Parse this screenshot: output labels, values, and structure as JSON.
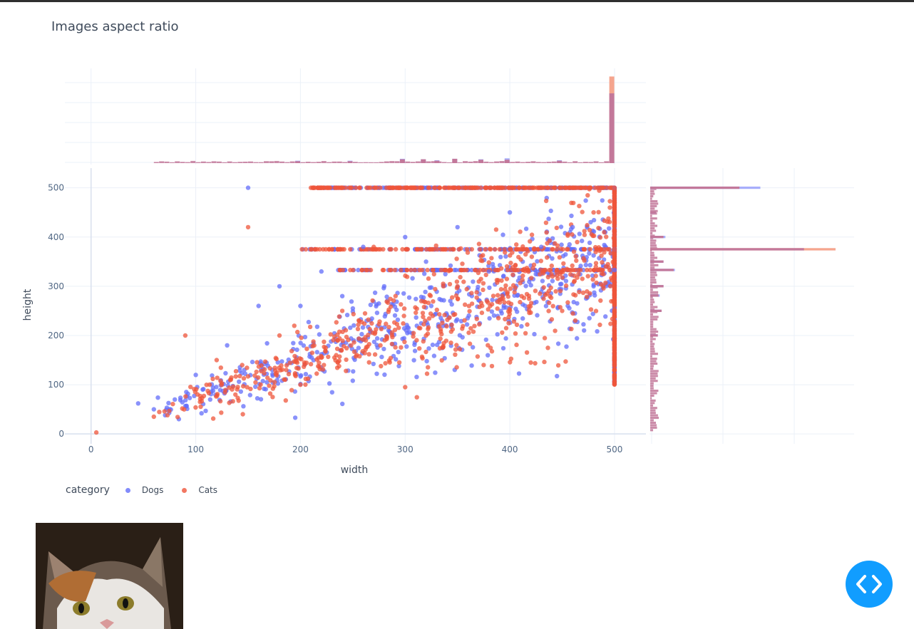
{
  "page": {
    "title": "Images aspect ratio"
  },
  "legend": {
    "title": "category",
    "items": [
      {
        "label": "Dogs",
        "color": "#636efa"
      },
      {
        "label": "Cats",
        "color": "#ef553b"
      }
    ]
  },
  "sample_image": {
    "icon": "cat-photo"
  },
  "code_toggle": {
    "icon": "code-brackets-icon",
    "color": "#119dff"
  },
  "chart_data": {
    "type": "scatter",
    "title": "Images aspect ratio",
    "xlabel": "width",
    "ylabel": "height",
    "xlim": [
      -25,
      530
    ],
    "ylim": [
      -20,
      540
    ],
    "x_ticks": [
      "0",
      "100",
      "200",
      "300",
      "400",
      "500"
    ],
    "y_ticks": [
      "0",
      "100",
      "200",
      "300",
      "400",
      "500"
    ],
    "grid": true,
    "legend_placement": "bottom-left",
    "marginal_x": "histogram",
    "marginal_y": "histogram",
    "series": [
      {
        "name": "Dogs",
        "color": "#636efa",
        "approx_points": [
          [
            45,
            62
          ],
          [
            60,
            50
          ],
          [
            80,
            70
          ],
          [
            100,
            120
          ],
          [
            130,
            180
          ],
          [
            150,
            500
          ],
          [
            160,
            260
          ],
          [
            180,
            300
          ],
          [
            200,
            260
          ],
          [
            220,
            330
          ],
          [
            240,
            280
          ],
          [
            260,
            380
          ],
          [
            280,
            300
          ],
          [
            300,
            400
          ],
          [
            320,
            350
          ],
          [
            350,
            420
          ],
          [
            380,
            330
          ],
          [
            400,
            450
          ],
          [
            430,
            380
          ],
          [
            460,
            420
          ],
          [
            480,
            300
          ],
          [
            500,
            375
          ],
          [
            500,
            333
          ],
          [
            500,
            500
          ],
          [
            195,
            33
          ]
        ]
      },
      {
        "name": "Cats",
        "color": "#ef553b",
        "approx_points": [
          [
            5,
            3
          ],
          [
            60,
            35
          ],
          [
            90,
            200
          ],
          [
            120,
            150
          ],
          [
            145,
            40
          ],
          [
            150,
            420
          ],
          [
            180,
            200
          ],
          [
            200,
            100
          ],
          [
            210,
            500
          ],
          [
            240,
            250
          ],
          [
            270,
            380
          ],
          [
            300,
            95
          ],
          [
            320,
            200
          ],
          [
            350,
            300
          ],
          [
            375,
            140
          ],
          [
            400,
            375
          ],
          [
            420,
            145
          ],
          [
            450,
            250
          ],
          [
            480,
            450
          ],
          [
            500,
            500
          ],
          [
            500,
            375
          ],
          [
            500,
            150
          ],
          [
            500,
            200
          ],
          [
            430,
            500
          ],
          [
            300,
            500
          ]
        ]
      }
    ],
    "marginal_x_bins": [
      {
        "x": 500,
        "dogs": 14.5,
        "cats": 18.0
      },
      {
        "x": 400,
        "dogs": 1.0,
        "cats": 0.7
      },
      {
        "x": 350,
        "dogs": 0.9,
        "cats": 0.9
      },
      {
        "x": 320,
        "dogs": 0.8,
        "cats": 0.8
      },
      {
        "x": 300,
        "dogs": 0.9,
        "cats": 0.8
      },
      {
        "x": 375,
        "dogs": 0.8,
        "cats": 0.7
      },
      {
        "x": 450,
        "dogs": 0.6,
        "cats": 0.5
      },
      {
        "x": 200,
        "dogs": 0.5,
        "cats": 0.4
      },
      {
        "x": 250,
        "dogs": 0.5,
        "cats": 0.4
      },
      {
        "x": 333,
        "dogs": 0.6,
        "cats": 0.5
      }
    ],
    "marginal_y_bins": [
      {
        "y": 500,
        "dogs": 29.0,
        "cats": 23.5
      },
      {
        "y": 375,
        "dogs": 40.5,
        "cats": 48.8
      },
      {
        "y": 333,
        "dogs": 6.5,
        "cats": 6.2
      },
      {
        "y": 400,
        "dogs": 4.0,
        "cats": 3.5
      },
      {
        "y": 300,
        "dogs": 3.5,
        "cats": 3.5
      },
      {
        "y": 250,
        "dogs": 3.0,
        "cats": 3.0
      },
      {
        "y": 350,
        "dogs": 3.5,
        "cats": 3.5
      },
      {
        "y": 200,
        "dogs": 2.0,
        "cats": 2.0
      },
      {
        "y": 281,
        "dogs": 2.5,
        "cats": 2.2
      },
      {
        "y": 450,
        "dogs": 1.5,
        "cats": 1.5
      }
    ]
  }
}
